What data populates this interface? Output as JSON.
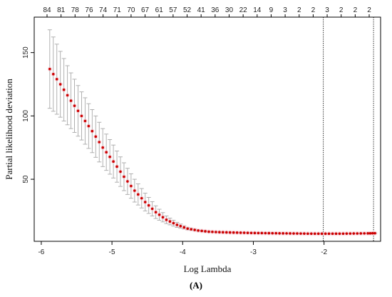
{
  "chart_data": {
    "type": "scatter",
    "xlabel": "Log Lambda",
    "ylabel": "Partial likelihood deviation",
    "panel_label": "(A)",
    "xlim": [
      -6.1,
      -1.2
    ],
    "ylim": [
      1,
      178
    ],
    "x_ticks": [
      -6,
      -5,
      -4,
      -3,
      -2
    ],
    "y_ticks": [
      50,
      100,
      150
    ],
    "top_ticks": [
      {
        "x": -5.88,
        "label": "84"
      },
      {
        "x": -5.64,
        "label": "81"
      },
      {
        "x": -5.39,
        "label": "78"
      },
      {
        "x": -5.15,
        "label": "76"
      },
      {
        "x": -4.91,
        "label": "74"
      },
      {
        "x": -4.67,
        "label": "71"
      },
      {
        "x": -4.42,
        "label": "70"
      },
      {
        "x": -4.18,
        "label": "67"
      },
      {
        "x": -3.94,
        "label": "61"
      },
      {
        "x": -3.69,
        "label": "57"
      },
      {
        "x": -3.45,
        "label": "52"
      },
      {
        "x": -3.21,
        "label": "41"
      },
      {
        "x": -2.96,
        "label": "36"
      },
      {
        "x": -2.72,
        "label": "30"
      },
      {
        "x": -2.48,
        "label": "22"
      },
      {
        "x": -2.24,
        "label": "14"
      },
      {
        "x": -2.01,
        "label": "9"
      },
      {
        "x": -1.85,
        "label": "3"
      },
      {
        "x": -1.68,
        "label": "2"
      },
      {
        "x": -1.51,
        "label": "2"
      },
      {
        "x": -1.34,
        "label": "3"
      },
      {
        "x": -1.17,
        "label": "2"
      },
      {
        "x": -1.0,
        "label": "2"
      },
      {
        "x": -0.83,
        "label": "2"
      }
    ],
    "vlines": [
      -2.01,
      -1.3
    ],
    "series": [
      {
        "marker_color": "#cc0000",
        "errorbar_color": "#a8a8a8",
        "points": [
          {
            "x": -5.88,
            "y": 137,
            "lo": 106,
            "hi": 168
          },
          {
            "x": -5.73,
            "y": 125,
            "lo": 99,
            "hi": 151
          },
          {
            "x": -5.58,
            "y": 112,
            "lo": 90,
            "hi": 134
          },
          {
            "x": -5.43,
            "y": 100,
            "lo": 81,
            "hi": 119
          },
          {
            "x": -5.28,
            "y": 88,
            "lo": 71,
            "hi": 105
          },
          {
            "x": -5.13,
            "y": 75,
            "lo": 60,
            "hi": 90
          },
          {
            "x": -4.98,
            "y": 64,
            "lo": 51,
            "hi": 77
          },
          {
            "x": -4.83,
            "y": 52,
            "lo": 41,
            "hi": 63
          },
          {
            "x": -4.68,
            "y": 41,
            "lo": 32,
            "hi": 50
          },
          {
            "x": -4.53,
            "y": 32,
            "lo": 25,
            "hi": 39
          },
          {
            "x": -4.38,
            "y": 24,
            "lo": 19,
            "hi": 29
          },
          {
            "x": -4.23,
            "y": 18,
            "lo": 15,
            "hi": 21
          },
          {
            "x": -4.08,
            "y": 14,
            "lo": 12,
            "hi": 16
          },
          {
            "x": -3.93,
            "y": 11,
            "lo": 10,
            "hi": 12
          },
          {
            "x": -3.78,
            "y": 9.5,
            "lo": 9,
            "hi": 10
          },
          {
            "x": -3.63,
            "y": 8.6,
            "lo": 8.2,
            "hi": 9
          },
          {
            "x": -3.48,
            "y": 8.2,
            "lo": 7.9,
            "hi": 8.5
          },
          {
            "x": -3.33,
            "y": 8,
            "lo": 7.8,
            "hi": 8.2
          },
          {
            "x": -3.18,
            "y": 7.8,
            "lo": 7.6,
            "hi": 8
          },
          {
            "x": -3.03,
            "y": 7.6,
            "lo": 7.4,
            "hi": 7.8
          },
          {
            "x": -2.88,
            "y": 7.5,
            "lo": 7.3,
            "hi": 7.7
          },
          {
            "x": -2.73,
            "y": 7.4,
            "lo": 7.2,
            "hi": 7.6
          },
          {
            "x": -2.58,
            "y": 7.3,
            "lo": 7.1,
            "hi": 7.5
          },
          {
            "x": -2.43,
            "y": 7.2,
            "lo": 7.0,
            "hi": 7.4
          },
          {
            "x": -2.28,
            "y": 7.1,
            "lo": 6.9,
            "hi": 7.3
          },
          {
            "x": -2.13,
            "y": 7.0,
            "lo": 6.8,
            "hi": 7.2
          },
          {
            "x": -1.98,
            "y": 7.0,
            "lo": 6.8,
            "hi": 7.2
          },
          {
            "x": -1.83,
            "y": 7.0,
            "lo": 6.8,
            "hi": 7.2
          },
          {
            "x": -1.68,
            "y": 7.1,
            "lo": 6.9,
            "hi": 7.3
          },
          {
            "x": -1.53,
            "y": 7.2,
            "lo": 7.0,
            "hi": 7.4
          },
          {
            "x": -1.38,
            "y": 7.3,
            "lo": 7.1,
            "hi": 7.5
          },
          {
            "x": -1.28,
            "y": 7.4,
            "lo": 7.2,
            "hi": 7.6
          }
        ]
      }
    ]
  }
}
